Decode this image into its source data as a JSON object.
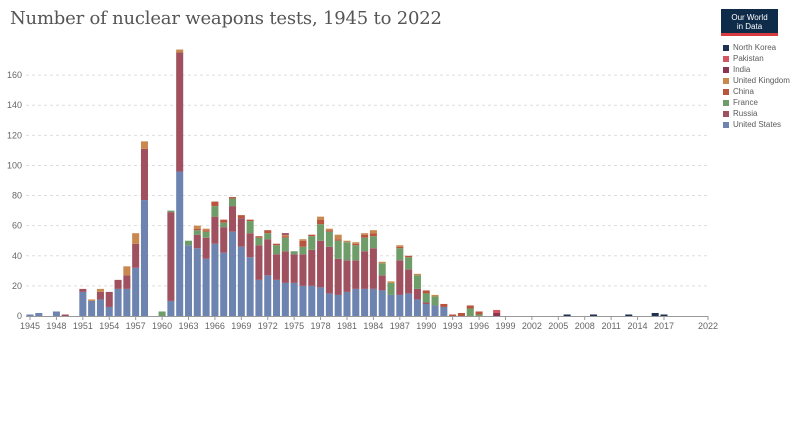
{
  "title": "Number of nuclear weapons tests, 1945 to 2022",
  "logo": {
    "line1": "Our World",
    "line2": "in Data"
  },
  "chart_data": {
    "type": "bar",
    "stacked": true,
    "legend_position": "right",
    "grid": "horizontal-dashed",
    "xlim": [
      1945,
      2022
    ],
    "ylim": [
      0,
      180
    ],
    "y_ticks": [
      0,
      20,
      40,
      60,
      80,
      100,
      120,
      140,
      160
    ],
    "x_ticks": [
      1945,
      1948,
      1951,
      1954,
      1957,
      1960,
      1963,
      1966,
      1969,
      1972,
      1975,
      1978,
      1981,
      1984,
      1987,
      1990,
      1993,
      1996,
      1999,
      2002,
      2005,
      2008,
      2011,
      2014,
      2017,
      2022
    ],
    "legend_order": [
      "North Korea",
      "Pakistan",
      "India",
      "United Kingdom",
      "China",
      "France",
      "Russia",
      "United States"
    ],
    "stack_order": [
      "United States",
      "Russia",
      "France",
      "China",
      "United Kingdom",
      "India",
      "Pakistan",
      "North Korea"
    ],
    "colors": {
      "United States": "#6d83b0",
      "Russia": "#a05160",
      "France": "#6e9d6a",
      "China": "#b9553e",
      "United Kingdom": "#c9894e",
      "India": "#8a3553",
      "Pakistan": "#d2555f",
      "North Korea": "#1e3150"
    },
    "series": [
      {
        "name": "United States",
        "values": {
          "1945": 1,
          "1946": 2,
          "1948": 3,
          "1951": 16,
          "1952": 10,
          "1953": 11,
          "1954": 6,
          "1955": 18,
          "1956": 18,
          "1957": 32,
          "1958": 77,
          "1961": 10,
          "1962": 96,
          "1963": 47,
          "1964": 45,
          "1965": 38,
          "1966": 48,
          "1967": 42,
          "1968": 56,
          "1969": 46,
          "1970": 39,
          "1971": 24,
          "1972": 27,
          "1973": 24,
          "1974": 22,
          "1975": 22,
          "1976": 20,
          "1977": 20,
          "1978": 19,
          "1979": 15,
          "1980": 14,
          "1981": 16,
          "1982": 18,
          "1983": 18,
          "1984": 18,
          "1985": 17,
          "1986": 14,
          "1987": 14,
          "1988": 15,
          "1989": 11,
          "1990": 8,
          "1991": 7,
          "1992": 6
        }
      },
      {
        "name": "Russia",
        "values": {
          "1949": 1,
          "1951": 2,
          "1953": 5,
          "1954": 10,
          "1955": 6,
          "1956": 9,
          "1957": 16,
          "1958": 34,
          "1961": 59,
          "1962": 79,
          "1964": 9,
          "1965": 14,
          "1966": 18,
          "1967": 17,
          "1968": 17,
          "1969": 19,
          "1970": 16,
          "1971": 23,
          "1972": 24,
          "1973": 17,
          "1974": 21,
          "1975": 19,
          "1976": 21,
          "1977": 24,
          "1978": 31,
          "1979": 31,
          "1980": 24,
          "1981": 21,
          "1982": 19,
          "1983": 25,
          "1984": 27,
          "1985": 10,
          "1987": 23,
          "1988": 16,
          "1989": 7,
          "1990": 1
        }
      },
      {
        "name": "France",
        "values": {
          "1960": 3,
          "1961": 1,
          "1963": 3,
          "1964": 3,
          "1965": 4,
          "1966": 7,
          "1967": 3,
          "1968": 5,
          "1969": 0,
          "1970": 8,
          "1971": 5,
          "1972": 4,
          "1973": 6,
          "1974": 9,
          "1975": 2,
          "1976": 5,
          "1977": 9,
          "1978": 11,
          "1979": 10,
          "1980": 12,
          "1981": 12,
          "1982": 10,
          "1983": 9,
          "1984": 8,
          "1985": 8,
          "1986": 8,
          "1987": 8,
          "1988": 8,
          "1989": 9,
          "1990": 6,
          "1991": 6,
          "1995": 5,
          "1996": 1
        }
      },
      {
        "name": "China",
        "values": {
          "1964": 1,
          "1965": 1,
          "1966": 3,
          "1967": 2,
          "1968": 1,
          "1969": 2,
          "1970": 1,
          "1971": 1,
          "1972": 2,
          "1973": 1,
          "1974": 1,
          "1976": 4,
          "1977": 1,
          "1978": 3,
          "1979": 1,
          "1980": 1,
          "1982": 1,
          "1983": 2,
          "1984": 2,
          "1985": 0,
          "1986": 0,
          "1987": 1,
          "1988": 1,
          "1990": 2,
          "1992": 2,
          "1993": 1,
          "1994": 2,
          "1995": 2,
          "1996": 2
        }
      },
      {
        "name": "United Kingdom",
        "values": {
          "1952": 1,
          "1953": 2,
          "1955": 0,
          "1956": 6,
          "1957": 7,
          "1958": 5,
          "1962": 2,
          "1964": 2,
          "1965": 1,
          "1966": 0,
          "1967": 0,
          "1971": 0,
          "1974": 1,
          "1976": 1,
          "1978": 2,
          "1979": 1,
          "1980": 3,
          "1981": 1,
          "1982": 1,
          "1983": 1,
          "1984": 2,
          "1985": 1,
          "1986": 1,
          "1987": 1,
          "1988": 0,
          "1989": 1,
          "1991": 1
        }
      },
      {
        "name": "India",
        "values": {
          "1974": 1,
          "1998": 2
        }
      },
      {
        "name": "Pakistan",
        "values": {
          "1998": 2
        }
      },
      {
        "name": "North Korea",
        "values": {
          "2006": 1,
          "2009": 1,
          "2013": 1,
          "2016": 2,
          "2017": 1
        }
      }
    ]
  }
}
